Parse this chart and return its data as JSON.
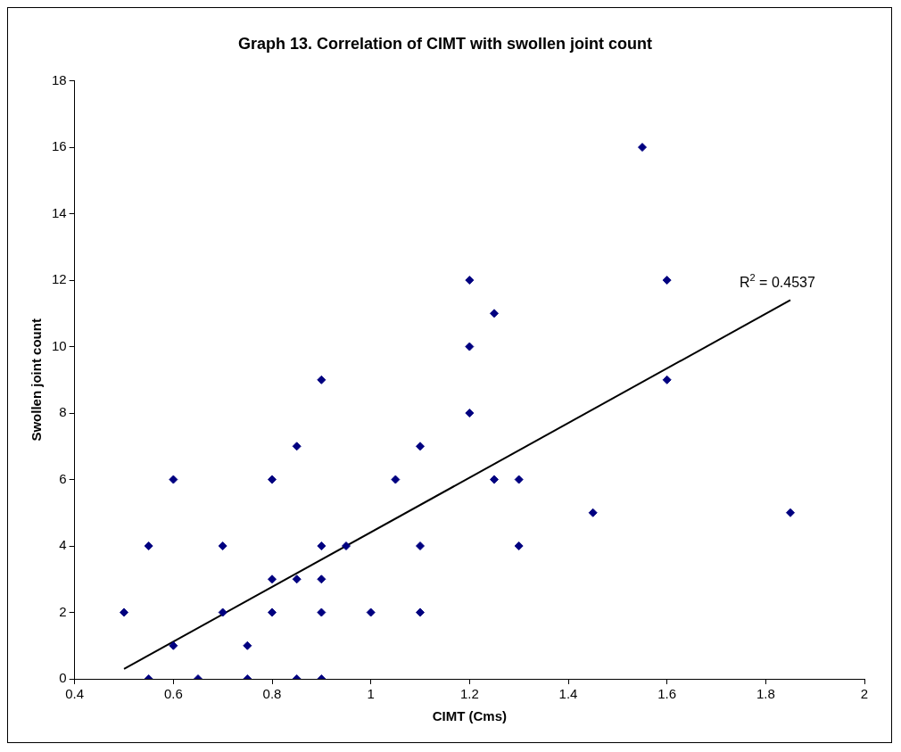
{
  "chart_data": {
    "type": "scatter",
    "title": "Graph 13. Correlation of CIMT with swollen joint count",
    "xlabel": "CIMT (Cms)",
    "ylabel": "Swollen joint count",
    "xlim": [
      0.4,
      2
    ],
    "xticks": [
      0.4,
      0.6,
      0.8,
      1,
      1.2,
      1.4,
      1.6,
      1.8,
      2
    ],
    "ylim": [
      0,
      18
    ],
    "yticks": [
      0,
      2,
      4,
      6,
      8,
      10,
      12,
      14,
      16,
      18
    ],
    "grid": false,
    "legend": false,
    "series": [
      {
        "marker": "diamond",
        "color": "#000080",
        "x": [
          0.5,
          0.55,
          0.55,
          0.6,
          0.6,
          0.65,
          0.7,
          0.7,
          0.75,
          0.75,
          0.8,
          0.8,
          0.8,
          0.85,
          0.85,
          0.85,
          0.9,
          0.9,
          0.9,
          0.9,
          0.9,
          0.95,
          1.0,
          1.05,
          1.1,
          1.1,
          1.1,
          1.2,
          1.2,
          1.2,
          1.25,
          1.25,
          1.3,
          1.3,
          1.45,
          1.55,
          1.6,
          1.6,
          1.85
        ],
        "values": [
          2,
          4,
          0,
          6,
          1,
          0,
          4,
          2,
          1,
          0,
          6,
          3,
          2,
          7,
          3,
          0,
          9,
          4,
          3,
          2,
          0,
          4,
          2,
          6,
          7,
          4,
          2,
          12,
          10,
          8,
          11,
          6,
          6,
          4,
          5,
          16,
          12,
          9,
          5
        ]
      },
      {
        "type": "line",
        "marker": "none",
        "color": "#000000",
        "x": [
          0.5,
          1.85
        ],
        "values": [
          0.3,
          11.4
        ]
      }
    ],
    "annotations": [
      "R$^{2}$ = 0.4537"
    ]
  }
}
